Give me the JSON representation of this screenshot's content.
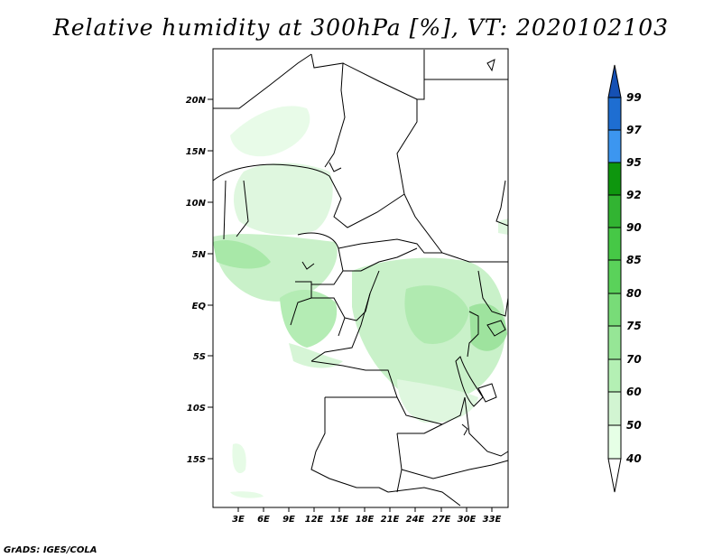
{
  "title": "Relative humidity at 300hPa [%], VT: 2020102103",
  "footer": "GrADS: IGES/COLA",
  "map": {
    "lat_ticks": [
      "20N",
      "15N",
      "10N",
      "5N",
      "EQ",
      "5S",
      "10S",
      "15S"
    ],
    "lon_ticks": [
      "3E",
      "6E",
      "9E",
      "12E",
      "15E",
      "18E",
      "21E",
      "24E",
      "27E",
      "30E",
      "33E"
    ]
  },
  "colorbar": {
    "levels": [
      "99",
      "97",
      "95",
      "92",
      "90",
      "85",
      "80",
      "75",
      "70",
      "60",
      "50",
      "40"
    ],
    "colors": [
      "#1e6ed2",
      "#3c96f0",
      "#0e960e",
      "#32b432",
      "#46c846",
      "#5ad25a",
      "#78dc78",
      "#96e696",
      "#b4f0b4",
      "#d2f5d2",
      "#e6ffe6"
    ],
    "top_arrow_color": "#1550b4",
    "bottom_arrow_color": "#ffffff"
  }
}
